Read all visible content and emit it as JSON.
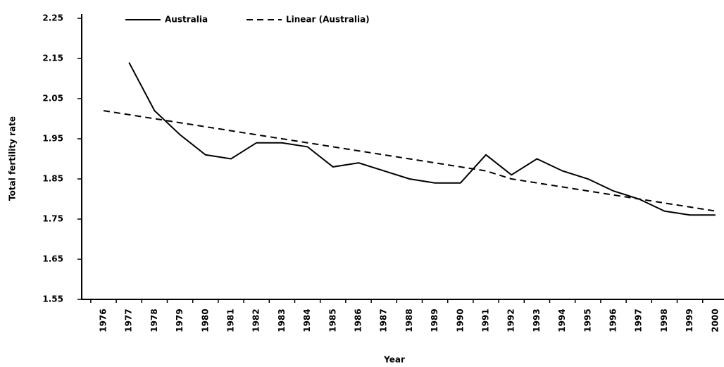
{
  "chart_data": {
    "type": "line",
    "x_label": "Year",
    "y_label": "Total fertility rate",
    "categories": [
      "1976",
      "1977",
      "1978",
      "1979",
      "1980",
      "1981",
      "1982",
      "1983",
      "1984",
      "1985",
      "1986",
      "1987",
      "1988",
      "1989",
      "1990",
      "1991",
      "1992",
      "1993",
      "1994",
      "1995",
      "1996",
      "1997",
      "1998",
      "1999",
      "2000"
    ],
    "series": [
      {
        "name": "Australia",
        "color": "#000000",
        "style": "solid",
        "values": [
          null,
          2.14,
          2.02,
          1.96,
          1.91,
          1.9,
          1.94,
          1.94,
          1.93,
          1.88,
          1.89,
          1.87,
          1.85,
          1.84,
          1.84,
          1.91,
          1.86,
          1.9,
          1.87,
          1.85,
          1.82,
          1.8,
          1.77,
          1.76,
          1.76
        ]
      },
      {
        "name": "Linear (Australia)",
        "color": "#000000",
        "style": "dashed",
        "values": [
          2.02,
          2.01,
          2.0,
          1.99,
          1.98,
          1.97,
          1.96,
          1.95,
          1.94,
          1.93,
          1.92,
          1.91,
          1.9,
          1.89,
          1.88,
          1.87,
          1.85,
          1.84,
          1.83,
          1.82,
          1.81,
          1.8,
          1.79,
          1.78,
          1.77
        ]
      }
    ],
    "ylim": [
      1.55,
      2.25
    ],
    "yticks": [
      1.55,
      1.65,
      1.75,
      1.85,
      1.95,
      2.05,
      2.15,
      2.25
    ],
    "grid": false,
    "legend": "top"
  }
}
